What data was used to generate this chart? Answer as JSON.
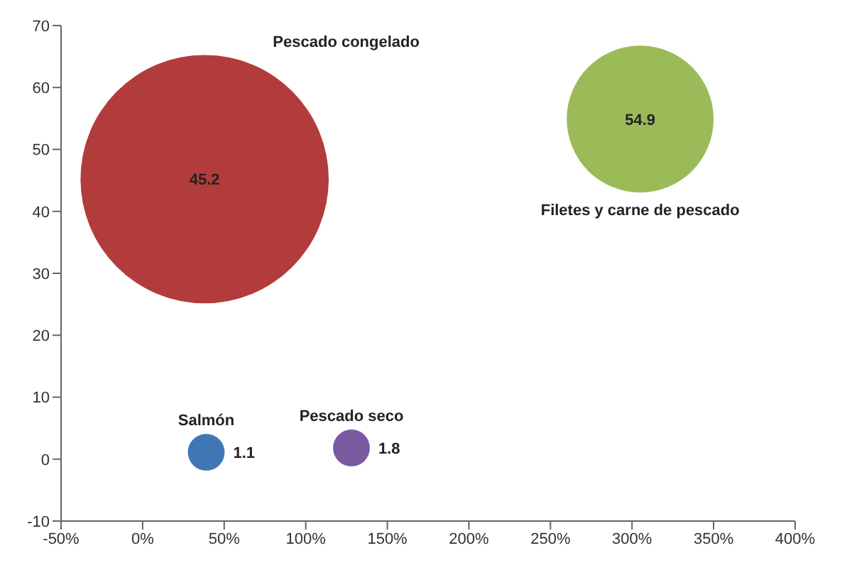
{
  "chart_data": {
    "type": "bubble",
    "series": [
      {
        "name": "Pescado congelado",
        "color": "#b23c3c",
        "x": [
          38
        ],
        "values": [
          45.2
        ],
        "sizes": [
          1
        ]
      },
      {
        "name": "Filetes y carne de pescado",
        "color": "#9bbb59",
        "x": [
          305
        ],
        "values": [
          54.9
        ],
        "sizes": [
          0.35
        ]
      },
      {
        "name": "Salmón",
        "color": "#3f77b5",
        "x": [
          39
        ],
        "values": [
          1.1
        ],
        "sizes": [
          0.022
        ]
      },
      {
        "name": "Pescado seco",
        "color": "#7a5a9e",
        "x": [
          128
        ],
        "values": [
          1.8
        ],
        "sizes": [
          0.022
        ]
      }
    ],
    "xlim": [
      -50,
      400
    ],
    "xticks": [
      {
        "value": -50,
        "label": "-50%"
      },
      {
        "value": 0,
        "label": "0%"
      },
      {
        "value": 50,
        "label": "50%"
      },
      {
        "value": 100,
        "label": "100%"
      },
      {
        "value": 150,
        "label": "150%"
      },
      {
        "value": 200,
        "label": "200%"
      },
      {
        "value": 250,
        "label": "250%"
      },
      {
        "value": 300,
        "label": "300%"
      },
      {
        "value": 350,
        "label": "350%"
      },
      {
        "value": 400,
        "label": "400%"
      }
    ],
    "ylim": [
      -10,
      70
    ],
    "yticks": [
      -10,
      0,
      10,
      20,
      30,
      40,
      50,
      60,
      70
    ],
    "data_labels": true,
    "grid": false,
    "legend": false
  }
}
